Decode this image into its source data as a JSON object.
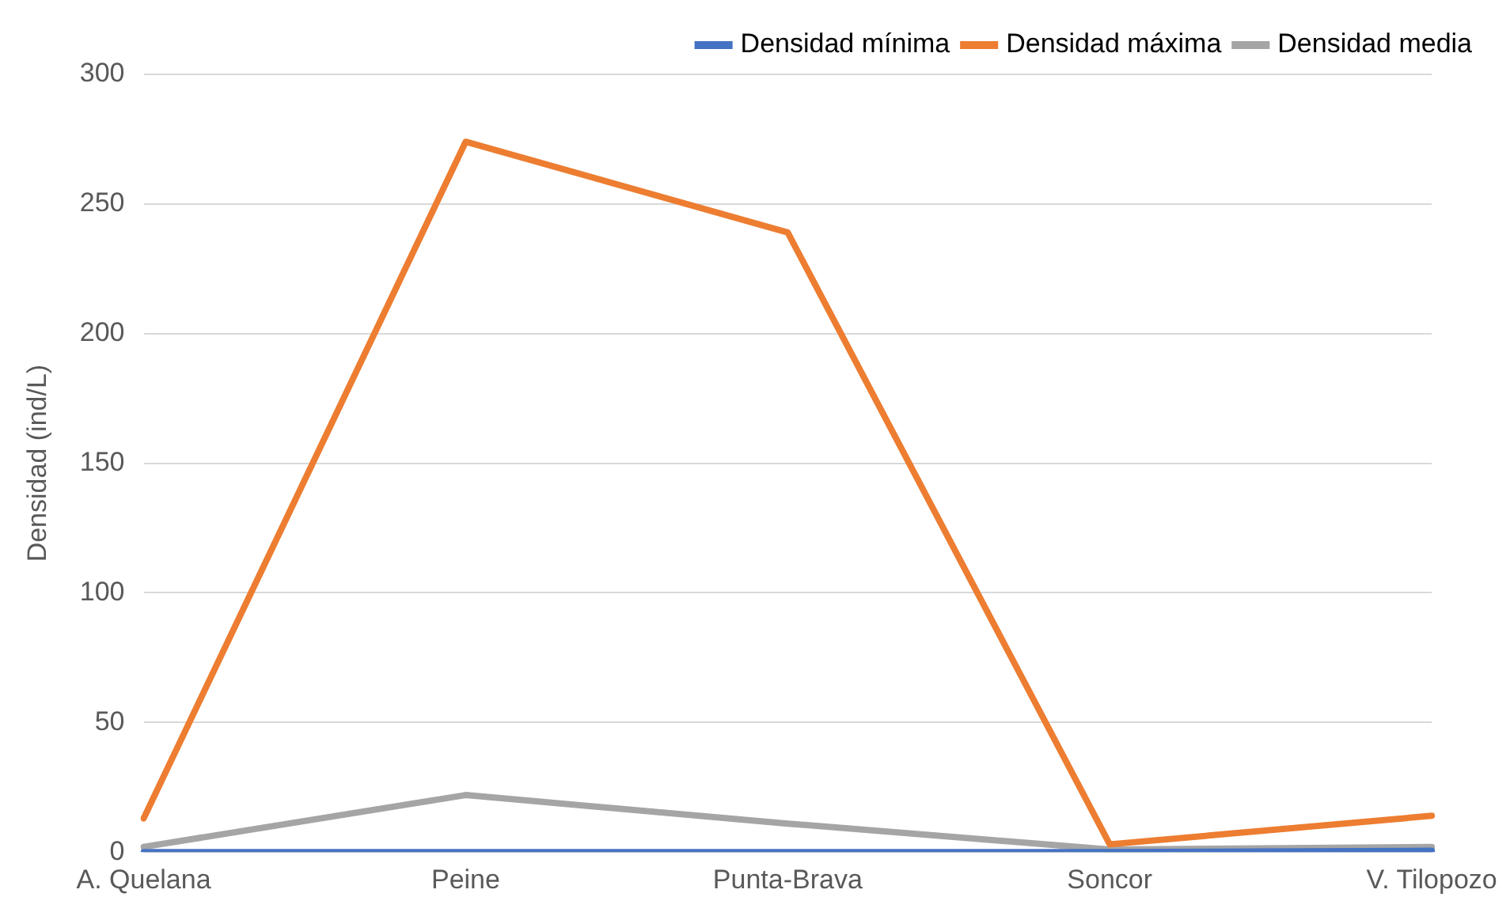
{
  "chart_data": {
    "type": "line",
    "ylabel": "Densidad (ind/L)",
    "categories": [
      "A. Quelana",
      "Peine",
      "Punta-Brava",
      "Soncor",
      "V. Tilopozo"
    ],
    "series": [
      {
        "name": "Densidad mínima",
        "color": "#4472c4",
        "values": [
          0,
          0,
          0,
          0,
          0.5
        ]
      },
      {
        "name": "Densidad máxima",
        "color": "#ed7d31",
        "values": [
          13,
          274,
          239,
          3,
          14
        ]
      },
      {
        "name": "Densidad media",
        "color": "#a5a5a5",
        "values": [
          2,
          22,
          11,
          1,
          2
        ]
      }
    ],
    "ylim": [
      0,
      300
    ],
    "yticks": [
      0,
      50,
      100,
      150,
      200,
      250,
      300
    ],
    "grid": "y",
    "legend": "top right",
    "marker": "none",
    "line_style": "solid"
  }
}
